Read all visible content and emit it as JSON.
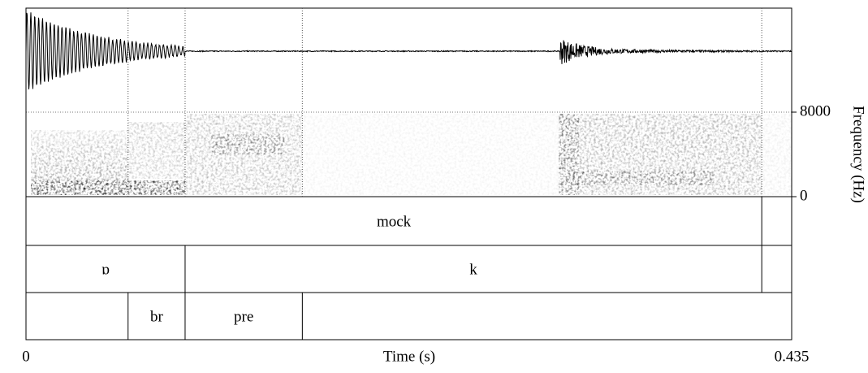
{
  "chart_data": {
    "type": "textgrid",
    "xlabel": "Time (s)",
    "xlim": [
      0,
      0.435
    ],
    "xticks": [
      0,
      0.435
    ],
    "ylabel": "Frequency (Hz)",
    "ylim": [
      0,
      8000
    ],
    "yticks": [
      0,
      8000
    ],
    "tiers": [
      {
        "boundaries": [
          0.418
        ],
        "labels": [
          "mock",
          null
        ]
      },
      {
        "boundaries": [
          0.0904,
          0.418
        ],
        "labels": [
          "ɒ",
          "k",
          null
        ]
      },
      {
        "boundaries": [
          0.058,
          0.0904,
          0.157
        ],
        "labels": [
          null,
          "br",
          "pre",
          null
        ]
      }
    ]
  }
}
